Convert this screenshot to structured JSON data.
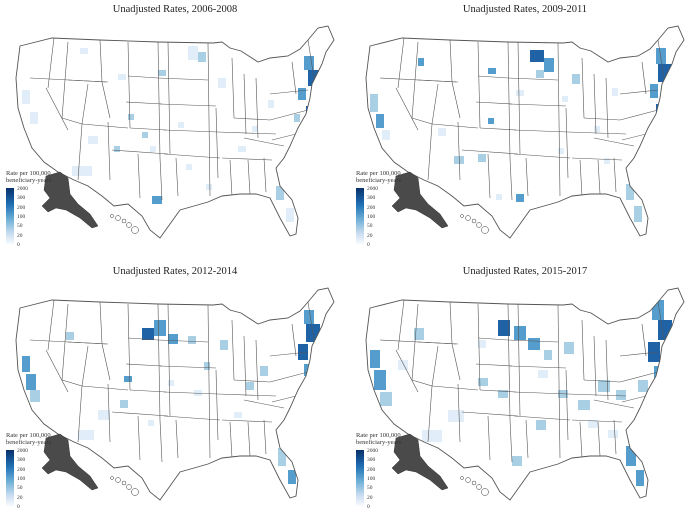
{
  "colors": {
    "state_border": "#555555",
    "land": "#ffffff",
    "alaska": "#4a4a4a",
    "shade_light": "#deebf7",
    "shade_mid": "#9ecae1",
    "shade_high": "#4292c6",
    "shade_max": "#08519c"
  },
  "panels": [
    {
      "title": "Unadjusted Rates, 2006-2008",
      "legend": {
        "title_line1": "Rate per 100,000",
        "title_line2": "beneficiary-years",
        "ticks": [
          "2000",
          "300",
          "200",
          "100",
          "50",
          "20",
          "0"
        ]
      }
    },
    {
      "title": "Unadjusted Rates, 2009-2011",
      "legend": {
        "title_line1": "Rate per 100,000",
        "title_line2": "beneficiary-years",
        "ticks": [
          "2000",
          "300",
          "200",
          "100",
          "50",
          "20",
          "0"
        ]
      }
    },
    {
      "title": "Unadjusted Rates, 2012-2014",
      "legend": {
        "title_line1": "Rate per 100,000",
        "title_line2": "beneficiary-years",
        "ticks": [
          "2000",
          "300",
          "200",
          "100",
          "50",
          "20",
          "0"
        ]
      }
    },
    {
      "title": "Unadjusted Rates, 2015-2017",
      "legend": {
        "title_line1": "Rate per 100,000",
        "title_line2": "beneficiary-years",
        "ticks": [
          "2000",
          "300",
          "200",
          "100",
          "50",
          "20",
          "0"
        ]
      }
    }
  ]
}
